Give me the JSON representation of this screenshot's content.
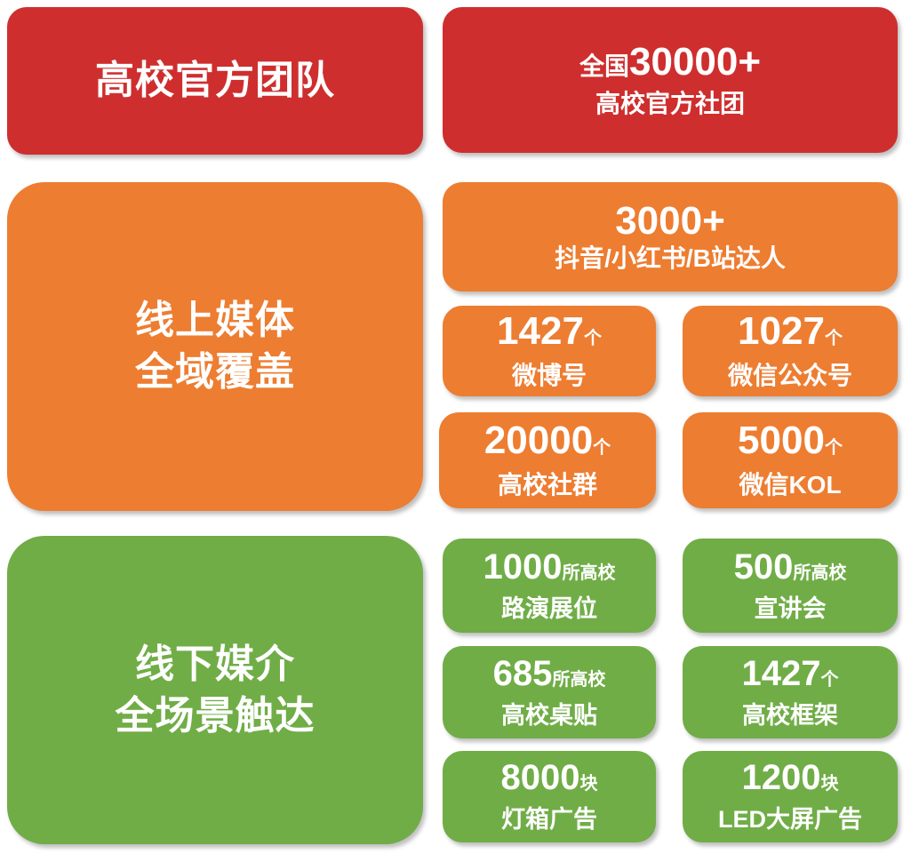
{
  "colors": {
    "red": "#cf2e2e",
    "orange": "#ed7d31",
    "green": "#70ad47"
  },
  "team": {
    "title": "高校官方团队",
    "stat": {
      "prefix": "全国",
      "value": "30000+",
      "label": "高校官方社团"
    }
  },
  "online": {
    "title_line1": "线上媒体",
    "title_line2": "全域覆盖",
    "items": [
      {
        "value": "3000+",
        "unit": "",
        "label": "抖音/小红书/B站达人"
      },
      {
        "value": "1427",
        "unit": "个",
        "label": "微博号"
      },
      {
        "value": "1027",
        "unit": "个",
        "label": "微信公众号"
      },
      {
        "value": "20000",
        "unit": "个",
        "label": "高校社群"
      },
      {
        "value": "5000",
        "unit": "个",
        "label": "微信KOL"
      }
    ]
  },
  "offline": {
    "title_line1": "线下媒介",
    "title_line2": "全场景触达",
    "items": [
      {
        "value": "1000",
        "unit": "所高校",
        "label": "路演展位"
      },
      {
        "value": "500",
        "unit": "所高校",
        "label": "宣讲会"
      },
      {
        "value": "685",
        "unit": "所高校",
        "label": "高校桌贴"
      },
      {
        "value": "1427",
        "unit": "个",
        "label": "高校框架"
      },
      {
        "value": "8000",
        "unit": "块",
        "label": "灯箱广告"
      },
      {
        "value": "1200",
        "unit": "块",
        "label": "LED大屏广告"
      }
    ]
  }
}
